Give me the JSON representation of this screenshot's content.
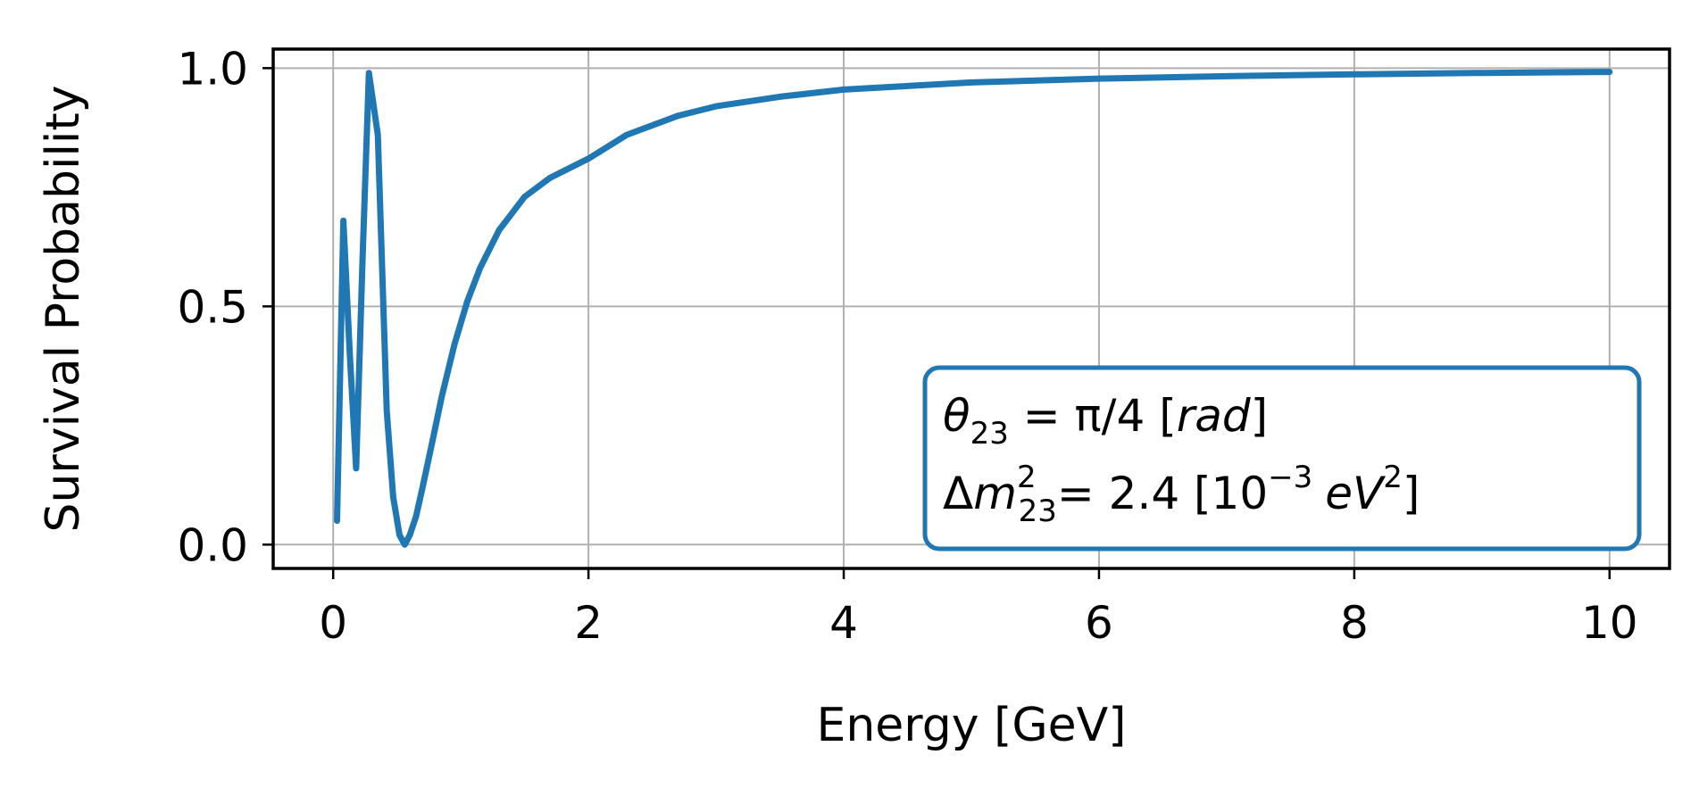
{
  "chart_data": {
    "type": "line",
    "xlabel": "Energy [GeV]",
    "ylabel": "Survival Probability",
    "xlim": [
      -0.47,
      10.47
    ],
    "ylim": [
      -0.05,
      1.04
    ],
    "xticks": [
      0,
      2,
      4,
      6,
      8,
      10
    ],
    "yticks": [
      0.0,
      0.5,
      1.0
    ],
    "xtick_labels": [
      "0",
      "2",
      "4",
      "6",
      "8",
      "10"
    ],
    "ytick_labels": [
      "0.0",
      "0.5",
      "1.0"
    ],
    "grid": true,
    "line_color": "#1f77b4",
    "annotation": {
      "theta_symbol": "θ",
      "theta_sub": "23",
      "theta_value": " = π/4 [",
      "theta_unit": "rad",
      "theta_close": "]",
      "dm_symbol": "Δ",
      "dm_var": "m",
      "dm_sup": "2",
      "dm_sub": "23",
      "dm_value": "= 2.4 [10",
      "dm_exp": "−3",
      "dm_unit": "eV",
      "dm_unit_sup": "2",
      "dm_close": "]",
      "location": "lower-right",
      "border_color": "#1f77b4"
    },
    "series": [
      {
        "x": [
          0.03,
          0.08,
          0.13,
          0.18,
          0.23,
          0.28,
          0.35,
          0.42,
          0.47,
          0.52,
          0.56,
          0.6,
          0.65,
          0.7,
          0.78,
          0.85,
          0.95,
          1.05,
          1.15,
          1.3,
          1.5,
          1.7,
          2.0,
          2.3,
          2.7,
          3.0,
          3.5,
          4.0,
          5.0,
          6.0,
          7.0,
          8.0,
          9.0,
          10.0
        ],
        "y": [
          0.05,
          0.68,
          0.4,
          0.16,
          0.6,
          0.99,
          0.86,
          0.28,
          0.1,
          0.02,
          0.0,
          0.02,
          0.06,
          0.12,
          0.22,
          0.31,
          0.42,
          0.51,
          0.58,
          0.66,
          0.73,
          0.77,
          0.81,
          0.86,
          0.9,
          0.92,
          0.94,
          0.955,
          0.97,
          0.978,
          0.983,
          0.987,
          0.99,
          0.992
        ]
      }
    ]
  }
}
